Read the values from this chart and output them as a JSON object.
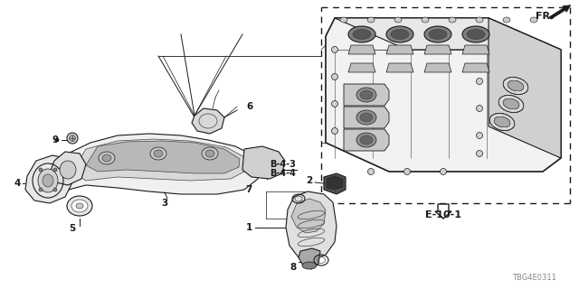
{
  "bg_color": "#ffffff",
  "diagram_code": "TBG4E0311",
  "fr_label": "FR.",
  "b43": "B-4-3",
  "b44": "B-4-4",
  "e101": "E-10-1",
  "part_nums": [
    "1",
    "2",
    "3",
    "4",
    "5",
    "6",
    "7",
    "8",
    "9"
  ],
  "figsize": [
    6.4,
    3.2
  ],
  "dpi": 100
}
